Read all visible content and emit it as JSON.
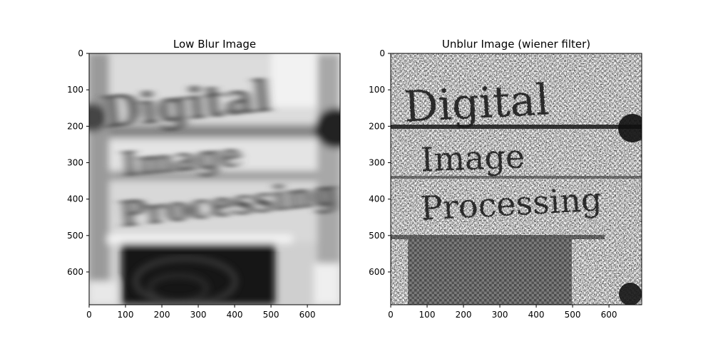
{
  "figure": {
    "background": "#ffffff"
  },
  "chart_data": [
    {
      "type": "image",
      "title": "Low Blur Image",
      "xlabel": "",
      "ylabel": "",
      "xlim": [
        0,
        690
      ],
      "ylim": [
        690,
        0
      ],
      "xticks": [
        0,
        100,
        200,
        300,
        400,
        500,
        600
      ],
      "yticks": [
        0,
        100,
        200,
        300,
        400,
        500,
        600
      ],
      "image_content": {
        "lines": [
          "Digital",
          "Image",
          "Processing"
        ],
        "style": "motion-blurred grayscale photograph"
      },
      "grid": false
    },
    {
      "type": "image",
      "title": "Unblur Image (wiener filter)",
      "xlabel": "",
      "ylabel": "",
      "xlim": [
        0,
        690
      ],
      "ylim": [
        690,
        0
      ],
      "xticks": [
        0,
        100,
        200,
        300,
        400,
        500,
        600
      ],
      "yticks": [
        0,
        100,
        200,
        300,
        400,
        500,
        600
      ],
      "image_content": {
        "lines": [
          "Digital",
          "Image",
          "Processing"
        ],
        "style": "wiener-filtered noisy high-contrast grayscale"
      },
      "grid": false
    }
  ]
}
